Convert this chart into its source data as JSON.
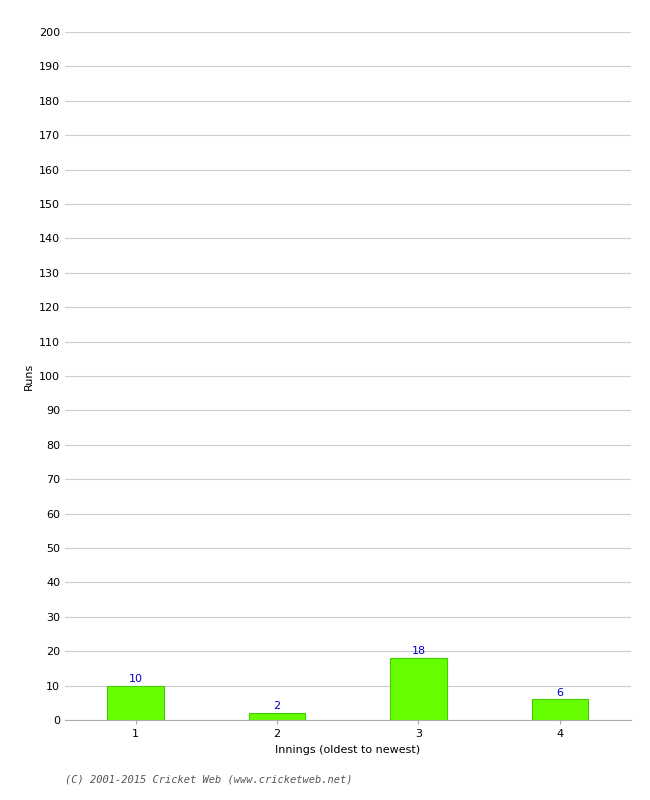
{
  "categories": [
    "1",
    "2",
    "3",
    "4"
  ],
  "values": [
    10,
    2,
    18,
    6
  ],
  "bar_color": "#66ff00",
  "bar_edge_color": "#44cc00",
  "label_color": "#0000cc",
  "xlabel": "Innings (oldest to newest)",
  "ylabel": "Runs",
  "ylim": [
    0,
    200
  ],
  "yticks": [
    0,
    10,
    20,
    30,
    40,
    50,
    60,
    70,
    80,
    90,
    100,
    110,
    120,
    130,
    140,
    150,
    160,
    170,
    180,
    190,
    200
  ],
  "background_color": "#ffffff",
  "grid_color": "#cccccc",
  "footer": "(C) 2001-2015 Cricket Web (www.cricketweb.net)",
  "label_fontsize": 8,
  "axis_label_fontsize": 8,
  "tick_fontsize": 8,
  "bar_width": 0.4
}
